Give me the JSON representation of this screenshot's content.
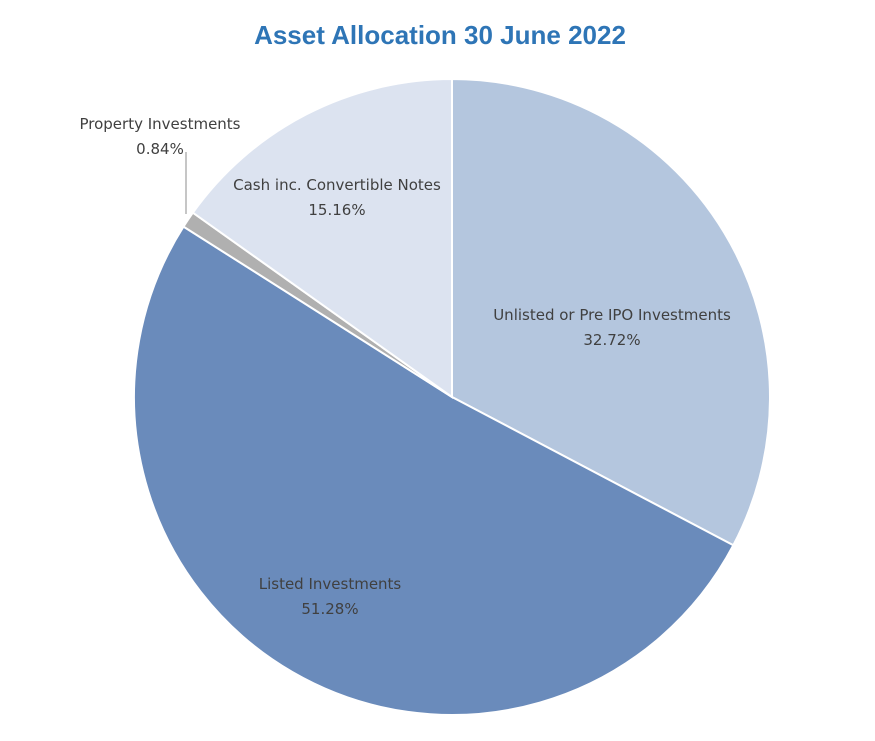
{
  "chart_data": {
    "type": "pie",
    "title": "Asset Allocation 30 June 2022",
    "title_color": "#2E75B6",
    "start_angle_deg": 0,
    "direction": "clockwise",
    "slices": [
      {
        "label": "Unlisted or Pre IPO Investments",
        "value": 32.72,
        "value_label": "32.72%",
        "color": "#B4C6DE"
      },
      {
        "label": "Listed Investments",
        "value": 51.28,
        "value_label": "51.28%",
        "color": "#6A8BBB"
      },
      {
        "label": "Property Investments",
        "value": 0.84,
        "value_label": "0.84%",
        "color": "#B0B0B0"
      },
      {
        "label": "Cash inc. Convertible Notes",
        "value": 15.16,
        "value_label": "15.16%",
        "color": "#DCE3F0"
      }
    ]
  }
}
